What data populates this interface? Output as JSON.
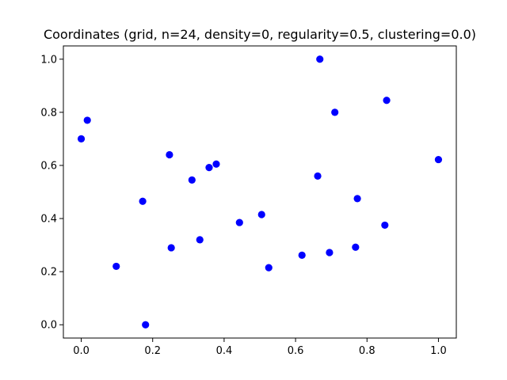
{
  "chart_data": {
    "type": "scatter",
    "title": "Coordinates (grid, n=24, density=0, regularity=0.5, clustering=0.0)",
    "xlabel": "",
    "ylabel": "",
    "xlim": [
      -0.05,
      1.05
    ],
    "ylim": [
      -0.05,
      1.05
    ],
    "x_ticks": [
      "0.0",
      "0.2",
      "0.4",
      "0.6",
      "0.8",
      "1.0"
    ],
    "y_ticks": [
      "0.0",
      "0.2",
      "0.4",
      "0.6",
      "0.8",
      "1.0"
    ],
    "grid": false,
    "marker_color": "#0000ff",
    "points": [
      {
        "x": 0.0,
        "y": 0.7
      },
      {
        "x": 0.017,
        "y": 0.77
      },
      {
        "x": 0.098,
        "y": 0.22
      },
      {
        "x": 0.172,
        "y": 0.465
      },
      {
        "x": 0.18,
        "y": 0.0
      },
      {
        "x": 0.247,
        "y": 0.64
      },
      {
        "x": 0.252,
        "y": 0.29
      },
      {
        "x": 0.31,
        "y": 0.545
      },
      {
        "x": 0.332,
        "y": 0.32
      },
      {
        "x": 0.358,
        "y": 0.592
      },
      {
        "x": 0.378,
        "y": 0.605
      },
      {
        "x": 0.443,
        "y": 0.385
      },
      {
        "x": 0.505,
        "y": 0.415
      },
      {
        "x": 0.525,
        "y": 0.215
      },
      {
        "x": 0.618,
        "y": 0.262
      },
      {
        "x": 0.662,
        "y": 0.56
      },
      {
        "x": 0.668,
        "y": 1.0
      },
      {
        "x": 0.695,
        "y": 0.272
      },
      {
        "x": 0.71,
        "y": 0.8
      },
      {
        "x": 0.768,
        "y": 0.292
      },
      {
        "x": 0.773,
        "y": 0.475
      },
      {
        "x": 0.85,
        "y": 0.375
      },
      {
        "x": 0.855,
        "y": 0.845
      },
      {
        "x": 1.0,
        "y": 0.622
      }
    ]
  }
}
